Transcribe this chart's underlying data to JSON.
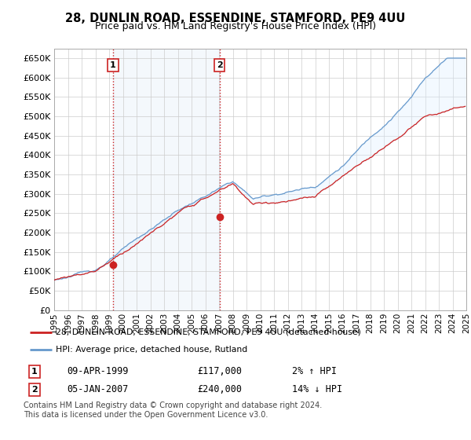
{
  "title": "28, DUNLIN ROAD, ESSENDINE, STAMFORD, PE9 4UU",
  "subtitle": "Price paid vs. HM Land Registry's House Price Index (HPI)",
  "ytick_vals": [
    0,
    50000,
    100000,
    150000,
    200000,
    250000,
    300000,
    350000,
    400000,
    450000,
    500000,
    550000,
    600000,
    650000
  ],
  "ylim": [
    0,
    675000
  ],
  "sale1_year": 1999.28,
  "sale1_price": 117000,
  "sale2_year": 2007.03,
  "sale2_price": 240000,
  "hpi_color": "#6699cc",
  "price_color": "#cc2222",
  "fill_color": "#ddeeff",
  "marker_color": "#cc2222",
  "legend_line1": "28, DUNLIN ROAD, ESSENDINE, STAMFORD, PE9 4UU (detached house)",
  "legend_line2": "HPI: Average price, detached house, Rutland",
  "footnote": "Contains HM Land Registry data © Crown copyright and database right 2024.\nThis data is licensed under the Open Government Licence v3.0.",
  "background_color": "#ffffff",
  "grid_color": "#cccccc",
  "vline_color": "#cc2222",
  "title_fontsize": 10.5,
  "subtitle_fontsize": 9,
  "tick_fontsize": 8,
  "x_start_year": 1995,
  "x_end_year": 2025
}
